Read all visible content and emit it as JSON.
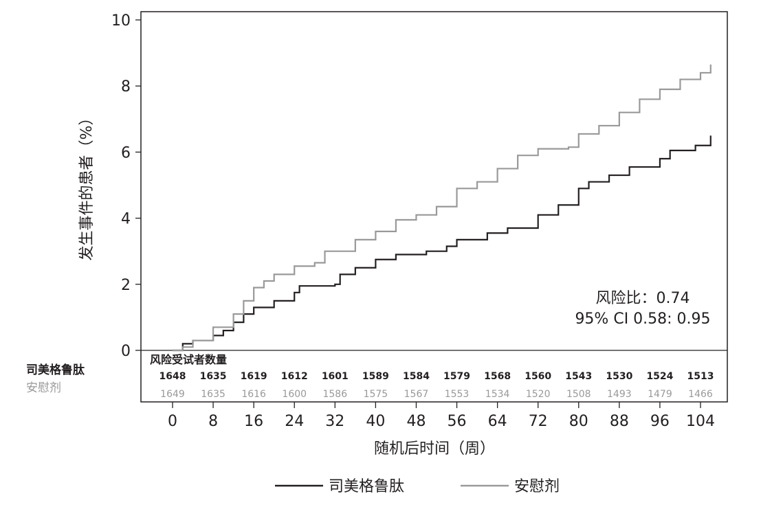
{
  "chart_data": {
    "type": "line",
    "subtype": "step (cumulative incidence)",
    "ylabel": "发生事件的患者（%）",
    "xlabel": "随机后时间（周）",
    "ylim": [
      0,
      10
    ],
    "yticks": [
      "0",
      "2",
      "4",
      "6",
      "8",
      "10"
    ],
    "xlim": [
      0,
      108
    ],
    "xticks": [
      "0",
      "8",
      "16",
      "24",
      "32",
      "40",
      "48",
      "56",
      "64",
      "72",
      "80",
      "88",
      "96",
      "104"
    ],
    "grid": false,
    "legend_position": "bottom",
    "annotation": {
      "hr": "风险比：0.74",
      "ci": "95% CI 0.58: 0.95"
    },
    "series": [
      {
        "name": "司美格鲁肽",
        "color": "#231f20",
        "x": [
          0,
          2,
          4,
          8,
          10,
          12,
          14,
          16,
          20,
          24,
          25,
          32,
          33,
          36,
          40,
          44,
          50,
          54,
          56,
          62,
          66,
          72,
          76,
          80,
          82,
          86,
          90,
          96,
          98,
          103,
          106
        ],
        "y": [
          0,
          0.2,
          0.3,
          0.45,
          0.6,
          0.85,
          1.1,
          1.3,
          1.5,
          1.75,
          1.95,
          2.0,
          2.3,
          2.5,
          2.75,
          2.9,
          3.0,
          3.15,
          3.35,
          3.55,
          3.7,
          4.1,
          4.4,
          4.9,
          5.1,
          5.3,
          5.55,
          5.8,
          6.05,
          6.2,
          6.5
        ]
      },
      {
        "name": "安慰剂",
        "color": "#999999",
        "x": [
          0,
          2,
          4,
          8,
          12,
          14,
          16,
          18,
          20,
          24,
          28,
          30,
          36,
          40,
          44,
          48,
          52,
          56,
          60,
          64,
          68,
          72,
          78,
          80,
          84,
          88,
          92,
          96,
          100,
          104,
          106
        ],
        "y": [
          0,
          0.1,
          0.3,
          0.7,
          1.1,
          1.5,
          1.9,
          2.1,
          2.3,
          2.55,
          2.65,
          3.0,
          3.35,
          3.6,
          3.95,
          4.1,
          4.35,
          4.9,
          5.1,
          5.5,
          5.9,
          6.1,
          6.15,
          6.55,
          6.8,
          7.2,
          7.6,
          7.9,
          8.2,
          8.4,
          8.65
        ]
      }
    ],
    "risk_table": {
      "title": "风险受试者数量",
      "rows": [
        {
          "label": "司美格鲁肽",
          "color": "#231f20",
          "values": [
            "1648",
            "1635",
            "1619",
            "1612",
            "1601",
            "1589",
            "1584",
            "1579",
            "1568",
            "1560",
            "1543",
            "1530",
            "1524",
            "1513"
          ]
        },
        {
          "label": "安慰剂",
          "color": "#999999",
          "values": [
            "1649",
            "1635",
            "1616",
            "1600",
            "1586",
            "1575",
            "1567",
            "1553",
            "1534",
            "1520",
            "1508",
            "1493",
            "1479",
            "1466"
          ]
        }
      ]
    }
  }
}
